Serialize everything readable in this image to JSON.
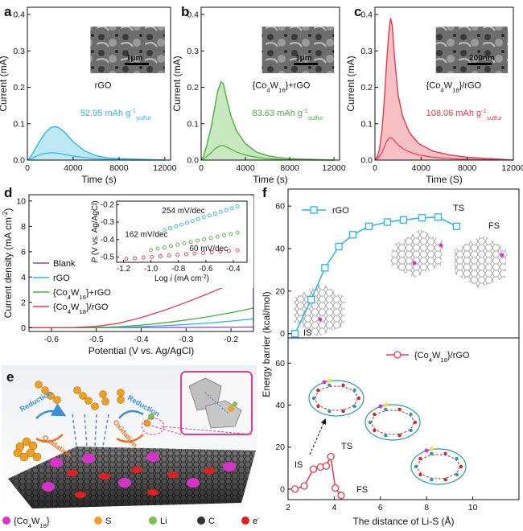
{
  "panels": {
    "a": "a",
    "b": "b",
    "c": "c",
    "d": "d",
    "e": "e",
    "f": "f"
  },
  "chart_data": [
    {
      "id": "a",
      "type": "area",
      "xlabel": "Time (s)",
      "ylabel": "Current (mA)",
      "xlim": [
        0,
        12500
      ],
      "ylim": [
        0,
        0.42
      ],
      "xticks": [
        "0",
        "4000",
        "8000",
        "12000"
      ],
      "yticks": [
        "0.0",
        "0.1",
        "0.2",
        "0.3",
        "0.4"
      ],
      "label": "rGO",
      "annotation": {
        "value": "52.95 mAh g",
        "sup": "-1",
        "sub": "sulfur"
      },
      "scale_bar": "1μm",
      "color": "#29b6e6",
      "fill": "#bfe8f6",
      "x": [
        0,
        200,
        500,
        800,
        1200,
        1600,
        2000,
        2300,
        2700,
        3200,
        4000,
        5000,
        6000,
        7000,
        8000,
        9000,
        10000,
        11000,
        12000
      ],
      "y": [
        0,
        0.006,
        0.02,
        0.037,
        0.058,
        0.076,
        0.088,
        0.092,
        0.09,
        0.078,
        0.05,
        0.025,
        0.012,
        0.006,
        0.004,
        0.003,
        0.002,
        0.001,
        0
      ],
      "lower_y": [
        0,
        0.002,
        0.006,
        0.011,
        0.016,
        0.019,
        0.02,
        0.02,
        0.019,
        0.016,
        0.011,
        0.007,
        0.004,
        0.002,
        0.001,
        0,
        0,
        0,
        0
      ]
    },
    {
      "id": "b",
      "type": "area",
      "xlabel": "Time (s)",
      "ylabel": "Current (mA)",
      "xlim": [
        0,
        12500
      ],
      "ylim": [
        0,
        0.42
      ],
      "xticks": [
        "0",
        "4000",
        "8000",
        "12000"
      ],
      "yticks": [
        "0.0",
        "0.1",
        "0.2",
        "0.3",
        "0.4"
      ],
      "label_prefix": "{Co",
      "label_sub1": "4",
      "label_mid": "W",
      "label_sub2": "16",
      "label_suffix": "}+rGO",
      "annotation": {
        "value": "83.63 mAh g",
        "sup": "-1",
        "sub": "sulfur"
      },
      "scale_bar": "1μm",
      "color": "#4caf3e",
      "fill": "#c8e8bf",
      "x": [
        0,
        200,
        500,
        900,
        1200,
        1500,
        1800,
        2000,
        2300,
        2700,
        3200,
        4000,
        5000,
        6000,
        7000,
        8000,
        10000,
        12000
      ],
      "y": [
        0,
        0.01,
        0.04,
        0.09,
        0.14,
        0.19,
        0.215,
        0.21,
        0.17,
        0.12,
        0.08,
        0.045,
        0.022,
        0.012,
        0.007,
        0.004,
        0.002,
        0
      ],
      "lower_y": [
        0,
        0.004,
        0.01,
        0.02,
        0.03,
        0.036,
        0.04,
        0.04,
        0.036,
        0.03,
        0.022,
        0.014,
        0.008,
        0.004,
        0.002,
        0.001,
        0,
        0
      ]
    },
    {
      "id": "c",
      "type": "area",
      "xlabel": "Time (S)",
      "ylabel": "Current (mA)",
      "xlim": [
        0,
        12000
      ],
      "ylim": [
        0,
        0.42
      ],
      "xticks": [
        "0",
        "4000",
        "8000",
        "12000"
      ],
      "yticks": [
        "0.0",
        "0.1",
        "0.2",
        "0.3",
        "0.4"
      ],
      "label_prefix": "{Co",
      "label_sub1": "4",
      "label_mid": "W",
      "label_sub2": "18",
      "label_suffix": "}/rGO",
      "annotation": {
        "value": "108.06 mAh g",
        "sup": "-1",
        "sub": "sulfur"
      },
      "scale_bar": "200nm",
      "color": "#e8394a",
      "fill": "#f6c0c5",
      "x": [
        0,
        200,
        400,
        600,
        800,
        1000,
        1200,
        1350,
        1500,
        1700,
        2000,
        2400,
        3000,
        3800,
        5000,
        6500,
        8000,
        10000,
        12000
      ],
      "y": [
        0,
        0.01,
        0.03,
        0.08,
        0.16,
        0.26,
        0.35,
        0.39,
        0.37,
        0.28,
        0.18,
        0.12,
        0.075,
        0.045,
        0.025,
        0.014,
        0.008,
        0.004,
        0
      ],
      "lower_y": [
        0,
        0.004,
        0.01,
        0.02,
        0.035,
        0.05,
        0.06,
        0.062,
        0.06,
        0.052,
        0.042,
        0.032,
        0.022,
        0.014,
        0.008,
        0.004,
        0.002,
        0.001,
        0
      ]
    },
    {
      "id": "d",
      "type": "line",
      "xlabel": "Potential (V vs. Ag/AgCl)",
      "ylabel": "Current density (mA cm",
      "ylabel_sup": "-2",
      "ylabel_end": ")",
      "xlim": [
        -0.65,
        -0.15
      ],
      "ylim": [
        -0.3,
        10.5
      ],
      "xticks": [
        "-0.6",
        "-0.5",
        "-0.4",
        "-0.3",
        "-0.2"
      ],
      "yticks": [
        "0",
        "2",
        "4",
        "6",
        "8",
        "10"
      ],
      "series": [
        {
          "name": "Blank",
          "color": "#8a3fd1",
          "x": [
            -0.65,
            -0.5,
            -0.4,
            -0.3,
            -0.15
          ],
          "y": [
            0,
            0,
            0.01,
            0.02,
            0.05
          ]
        },
        {
          "name": "rGO",
          "color": "#29b6e6",
          "x": [
            -0.65,
            -0.5,
            -0.45,
            -0.4,
            -0.35,
            -0.3,
            -0.25,
            -0.2,
            -0.15
          ],
          "y": [
            0,
            0.01,
            0.03,
            0.08,
            0.15,
            0.25,
            0.37,
            0.52,
            0.7
          ]
        },
        {
          "name_prefix": "{Co",
          "name_sub1": "4",
          "name_mid": "W",
          "name_sub2": "16",
          "name_suffix": "}+rGO",
          "color": "#4caf3e",
          "x": [
            -0.65,
            -0.5,
            -0.45,
            -0.4,
            -0.35,
            -0.3,
            -0.25,
            -0.2,
            -0.15
          ],
          "y": [
            0,
            0.02,
            0.08,
            0.2,
            0.38,
            0.6,
            0.87,
            1.18,
            1.55
          ]
        },
        {
          "name_prefix": "{Co",
          "name_sub1": "4",
          "name_mid": "W",
          "name_sub2": "18",
          "name_suffix": "}/rGO",
          "color": "#e8394a",
          "x": [
            -0.65,
            -0.55,
            -0.5,
            -0.45,
            -0.4,
            -0.35,
            -0.3,
            -0.25,
            -0.2,
            -0.15
          ],
          "y": [
            0,
            0.02,
            0.1,
            0.35,
            0.8,
            1.35,
            2.0,
            2.7,
            3.45,
            4.3
          ]
        }
      ],
      "inset": {
        "type": "scatter",
        "xlabel": "Log ",
        "xlabel_i": "i",
        "xlabel_end": " (mA cm",
        "xlabel_sup": "-2",
        "xlabel_close": ")",
        "ylabel_p": "P",
        "ylabel": " (V vs. Ag/AgCl)",
        "xlim": [
          -1.25,
          -0.3
        ],
        "ylim": [
          -0.53,
          -0.18
        ],
        "xticks": [
          "-1.2",
          "-1.0",
          "-0.8",
          "-0.6",
          "-0.4"
        ],
        "yticks": [
          "-0.2",
          "-0.3",
          "-0.4",
          "-0.5"
        ],
        "series": [
          {
            "label": "254 mV/dec",
            "color": "#29b6e6",
            "x0": -0.9,
            "x1": -0.37,
            "y0": -0.345,
            "y1": -0.21
          },
          {
            "label": "162 mV/dec",
            "color": "#4caf3e",
            "x0": -1.0,
            "x1": -0.37,
            "y0": -0.46,
            "y1": -0.36
          },
          {
            "label": "60 mV/dec",
            "color": "#e8394a",
            "x0": -1.18,
            "x1": -0.37,
            "y0": -0.51,
            "y1": -0.462
          }
        ]
      }
    },
    {
      "id": "f",
      "type": "line",
      "xlabel": "The distance of Li-S (Å)",
      "ylabel": "Energy barrier (kcal/mol)",
      "xlim": [
        2,
        12
      ],
      "xticks": [
        "2",
        "4",
        "6",
        "8",
        "10"
      ],
      "top": {
        "ylim": [
          -2,
          68
        ],
        "yticks": [
          "0",
          "20",
          "40",
          "60"
        ],
        "series": {
          "name": "rGO",
          "color": "#29b6e6",
          "x": [
            2.3,
            3.0,
            3.6,
            4.2,
            4.8,
            5.5,
            6.3,
            7.0,
            7.8,
            8.5,
            9.3
          ],
          "y": [
            0,
            16,
            31,
            41,
            46.5,
            50.5,
            52.5,
            53.5,
            54.5,
            54.8,
            50.5
          ]
        },
        "labels": {
          "is": "IS",
          "ts": "TS",
          "fs": "FS"
        }
      },
      "bottom": {
        "ylim": [
          -5,
          72
        ],
        "yticks": [
          "0",
          "20",
          "40",
          "60"
        ],
        "series": {
          "name_prefix": "{Co",
          "name_sub1": "4",
          "name_mid": "W",
          "name_sub2": "18",
          "name_suffix": "}/rGO",
          "color": "#e8394a",
          "x": [
            2.3,
            2.7,
            3.1,
            3.4,
            3.65,
            3.85,
            4.05,
            4.3
          ],
          "y": [
            0,
            1.5,
            9.5,
            10.5,
            11,
            15.5,
            0.5,
            -3
          ]
        },
        "labels": {
          "is": "IS",
          "ts": "TS",
          "fs": "FS"
        }
      }
    }
  ],
  "legend_e": [
    {
      "prefix": "{Co",
      "sub1": "4",
      "mid": "W",
      "sub2": "18",
      "suffix": "}",
      "color": "#d633c8"
    },
    {
      "label": "S",
      "color": "#f0a020"
    },
    {
      "label": "Li",
      "color": "#7cc24b"
    },
    {
      "label": "C",
      "color": "#333333"
    },
    {
      "label": "e",
      "sup": "-",
      "color": "#e02020"
    }
  ],
  "panel_e_text": {
    "reduction": "Reduction",
    "oxidation": "Oxidation"
  }
}
